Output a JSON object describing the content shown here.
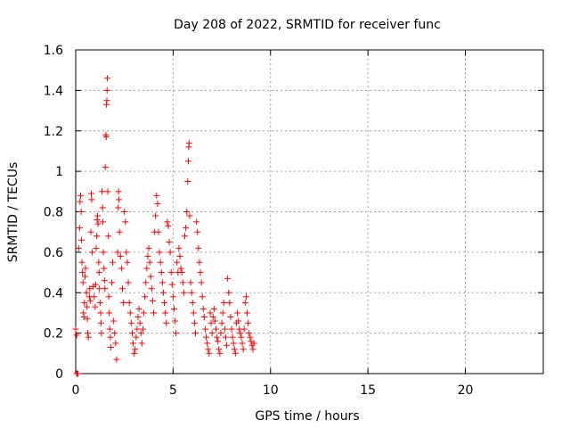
{
  "chart_data": {
    "type": "scatter",
    "title": "Day 208 of 2022, SRMTID for receiver func",
    "xlabel": "GPS time / hours",
    "ylabel": "SRMTID / TECUs",
    "xlim": [
      0,
      24
    ],
    "ylim": [
      0,
      1.6
    ],
    "xticks": [
      0,
      5,
      10,
      15,
      20
    ],
    "xtick_labels": [
      "0",
      "5",
      "10",
      "15",
      "20"
    ],
    "yticks": [
      0,
      0.2,
      0.4,
      0.6,
      0.8,
      1,
      1.2,
      1.4,
      1.6
    ],
    "ytick_labels": [
      "0",
      "0.2",
      "0.4",
      "0.6",
      "0.8",
      "1",
      "1.2",
      "1.4",
      "1.6"
    ],
    "grid": true,
    "marker": "+",
    "color": "#ff0000",
    "series": [
      {
        "name": "SRMTID",
        "points": [
          [
            0.05,
            0.0
          ],
          [
            0.08,
            0.0
          ],
          [
            0.12,
            0.0
          ],
          [
            0.0,
            0.22
          ],
          [
            0.05,
            0.19
          ],
          [
            0.15,
            0.62
          ],
          [
            0.2,
            0.72
          ],
          [
            0.22,
            0.85
          ],
          [
            0.25,
            0.88
          ],
          [
            0.28,
            0.8
          ],
          [
            0.3,
            0.66
          ],
          [
            0.32,
            0.55
          ],
          [
            0.35,
            0.5
          ],
          [
            0.38,
            0.45
          ],
          [
            0.4,
            0.3
          ],
          [
            0.42,
            0.28
          ],
          [
            0.45,
            0.35
          ],
          [
            0.48,
            0.48
          ],
          [
            0.5,
            0.52
          ],
          [
            0.55,
            0.4
          ],
          [
            0.58,
            0.33
          ],
          [
            0.6,
            0.27
          ],
          [
            0.62,
            0.2
          ],
          [
            0.65,
            0.18
          ],
          [
            0.7,
            0.38
          ],
          [
            0.72,
            0.42
          ],
          [
            0.75,
            0.36
          ],
          [
            0.78,
            0.7
          ],
          [
            0.8,
            0.89
          ],
          [
            0.82,
            0.86
          ],
          [
            0.85,
            0.6
          ],
          [
            0.9,
            0.43
          ],
          [
            0.95,
            0.38
          ],
          [
            1.0,
            0.33
          ],
          [
            1.02,
            0.44
          ],
          [
            1.05,
            0.62
          ],
          [
            1.08,
            0.68
          ],
          [
            1.1,
            0.76
          ],
          [
            1.12,
            0.78
          ],
          [
            1.15,
            0.74
          ],
          [
            1.18,
            0.55
          ],
          [
            1.2,
            0.5
          ],
          [
            1.22,
            0.42
          ],
          [
            1.25,
            0.35
          ],
          [
            1.28,
            0.3
          ],
          [
            1.3,
            0.25
          ],
          [
            1.32,
            0.2
          ],
          [
            1.35,
            0.9
          ],
          [
            1.38,
            0.82
          ],
          [
            1.4,
            0.75
          ],
          [
            1.42,
            0.6
          ],
          [
            1.45,
            0.52
          ],
          [
            1.48,
            0.46
          ],
          [
            1.5,
            0.42
          ],
          [
            1.52,
            1.02
          ],
          [
            1.55,
            1.18
          ],
          [
            1.57,
            1.17
          ],
          [
            1.58,
            1.33
          ],
          [
            1.6,
            1.35
          ],
          [
            1.61,
            1.4
          ],
          [
            1.62,
            1.46
          ],
          [
            1.65,
            0.9
          ],
          [
            1.68,
            0.68
          ],
          [
            1.7,
            0.38
          ],
          [
            1.72,
            0.3
          ],
          [
            1.75,
            0.22
          ],
          [
            1.78,
            0.18
          ],
          [
            1.8,
            0.13
          ],
          [
            1.85,
            0.45
          ],
          [
            1.9,
            0.55
          ],
          [
            1.95,
            0.26
          ],
          [
            2.0,
            0.2
          ],
          [
            2.05,
            0.15
          ],
          [
            2.1,
            0.07
          ],
          [
            2.15,
            0.6
          ],
          [
            2.18,
            0.82
          ],
          [
            2.2,
            0.9
          ],
          [
            2.22,
            0.86
          ],
          [
            2.25,
            0.7
          ],
          [
            2.3,
            0.58
          ],
          [
            2.35,
            0.52
          ],
          [
            2.4,
            0.42
          ],
          [
            2.45,
            0.35
          ],
          [
            2.5,
            0.8
          ],
          [
            2.55,
            0.75
          ],
          [
            2.6,
            0.6
          ],
          [
            2.65,
            0.55
          ],
          [
            2.7,
            0.45
          ],
          [
            2.75,
            0.35
          ],
          [
            2.8,
            0.3
          ],
          [
            2.85,
            0.25
          ],
          [
            2.9,
            0.2
          ],
          [
            2.95,
            0.15
          ],
          [
            3.0,
            0.1
          ],
          [
            3.05,
            0.12
          ],
          [
            3.1,
            0.18
          ],
          [
            3.15,
            0.22
          ],
          [
            3.2,
            0.28
          ],
          [
            3.25,
            0.32
          ],
          [
            3.3,
            0.25
          ],
          [
            3.35,
            0.2
          ],
          [
            3.4,
            0.15
          ],
          [
            3.45,
            0.22
          ],
          [
            3.5,
            0.3
          ],
          [
            3.55,
            0.38
          ],
          [
            3.6,
            0.45
          ],
          [
            3.65,
            0.52
          ],
          [
            3.7,
            0.58
          ],
          [
            3.75,
            0.62
          ],
          [
            3.8,
            0.55
          ],
          [
            3.85,
            0.48
          ],
          [
            3.9,
            0.42
          ],
          [
            3.95,
            0.36
          ],
          [
            4.0,
            0.3
          ],
          [
            4.05,
            0.7
          ],
          [
            4.1,
            0.78
          ],
          [
            4.15,
            0.88
          ],
          [
            4.2,
            0.84
          ],
          [
            4.25,
            0.7
          ],
          [
            4.3,
            0.6
          ],
          [
            4.35,
            0.55
          ],
          [
            4.4,
            0.5
          ],
          [
            4.45,
            0.45
          ],
          [
            4.5,
            0.4
          ],
          [
            4.55,
            0.35
          ],
          [
            4.6,
            0.3
          ],
          [
            4.65,
            0.25
          ],
          [
            4.7,
            0.75
          ],
          [
            4.75,
            0.73
          ],
          [
            4.8,
            0.65
          ],
          [
            4.85,
            0.6
          ],
          [
            4.9,
            0.5
          ],
          [
            4.95,
            0.44
          ],
          [
            5.0,
            0.38
          ],
          [
            5.05,
            0.32
          ],
          [
            5.1,
            0.26
          ],
          [
            5.15,
            0.2
          ],
          [
            5.2,
            0.55
          ],
          [
            5.25,
            0.5
          ],
          [
            5.3,
            0.62
          ],
          [
            5.35,
            0.58
          ],
          [
            5.4,
            0.52
          ],
          [
            5.45,
            0.5
          ],
          [
            5.5,
            0.45
          ],
          [
            5.55,
            0.4
          ],
          [
            5.6,
            0.68
          ],
          [
            5.65,
            0.72
          ],
          [
            5.7,
            0.8
          ],
          [
            5.75,
            0.95
          ],
          [
            5.78,
            1.05
          ],
          [
            5.8,
            1.12
          ],
          [
            5.82,
            1.14
          ],
          [
            5.85,
            0.78
          ],
          [
            5.9,
            0.45
          ],
          [
            5.95,
            0.4
          ],
          [
            6.0,
            0.35
          ],
          [
            6.05,
            0.3
          ],
          [
            6.1,
            0.25
          ],
          [
            6.15,
            0.2
          ],
          [
            6.2,
            0.75
          ],
          [
            6.25,
            0.7
          ],
          [
            6.3,
            0.62
          ],
          [
            6.35,
            0.55
          ],
          [
            6.4,
            0.5
          ],
          [
            6.45,
            0.45
          ],
          [
            6.5,
            0.38
          ],
          [
            6.55,
            0.32
          ],
          [
            6.6,
            0.28
          ],
          [
            6.65,
            0.22
          ],
          [
            6.7,
            0.18
          ],
          [
            6.75,
            0.15
          ],
          [
            6.8,
            0.12
          ],
          [
            6.85,
            0.1
          ],
          [
            6.9,
            0.3
          ],
          [
            6.95,
            0.25
          ],
          [
            7.0,
            0.2
          ],
          [
            7.05,
            0.28
          ],
          [
            7.1,
            0.32
          ],
          [
            7.15,
            0.26
          ],
          [
            7.2,
            0.22
          ],
          [
            7.25,
            0.18
          ],
          [
            7.3,
            0.16
          ],
          [
            7.35,
            0.12
          ],
          [
            7.4,
            0.1
          ],
          [
            7.45,
            0.2
          ],
          [
            7.5,
            0.25
          ],
          [
            7.55,
            0.3
          ],
          [
            7.6,
            0.35
          ],
          [
            7.65,
            0.22
          ],
          [
            7.7,
            0.18
          ],
          [
            7.75,
            0.14
          ],
          [
            7.8,
            0.47
          ],
          [
            7.85,
            0.4
          ],
          [
            7.9,
            0.35
          ],
          [
            7.95,
            0.28
          ],
          [
            8.0,
            0.22
          ],
          [
            8.05,
            0.18
          ],
          [
            8.1,
            0.15
          ],
          [
            8.15,
            0.12
          ],
          [
            8.2,
            0.1
          ],
          [
            8.25,
            0.25
          ],
          [
            8.3,
            0.3
          ],
          [
            8.35,
            0.26
          ],
          [
            8.4,
            0.22
          ],
          [
            8.45,
            0.2
          ],
          [
            8.5,
            0.18
          ],
          [
            8.55,
            0.15
          ],
          [
            8.6,
            0.12
          ],
          [
            8.65,
            0.22
          ],
          [
            8.7,
            0.35
          ],
          [
            8.75,
            0.38
          ],
          [
            8.8,
            0.3
          ],
          [
            8.85,
            0.25
          ],
          [
            8.9,
            0.2
          ],
          [
            8.95,
            0.18
          ],
          [
            9.0,
            0.16
          ],
          [
            9.05,
            0.14
          ],
          [
            9.1,
            0.12
          ],
          [
            9.15,
            0.15
          ]
        ]
      }
    ]
  }
}
